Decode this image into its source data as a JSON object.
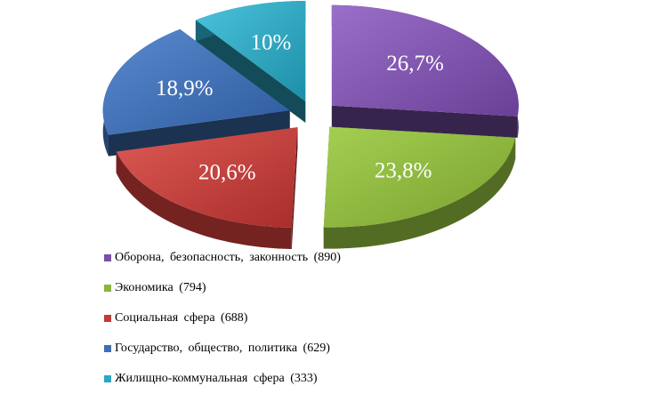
{
  "chart_data": {
    "type": "pie",
    "title": "",
    "slices": [
      {
        "label": "Оборона, безопасность, законность",
        "count": 890,
        "value": 26.7,
        "value_label": "26,7%",
        "color": "#7b4fa8",
        "legend": "Оборона,  безопасность,  законность (890)"
      },
      {
        "label": "Экономика",
        "count": 794,
        "value": 23.8,
        "value_label": "23,8%",
        "color": "#8bb43a",
        "legend": "Экономика (794)"
      },
      {
        "label": "Социальная сфера",
        "count": 688,
        "value": 20.6,
        "value_label": "20,6%",
        "color": "#c23b37",
        "legend": "Социальная  сфера (688)"
      },
      {
        "label": "Государство, общество, политика",
        "count": 629,
        "value": 18.9,
        "value_label": "18,9%",
        "color": "#3d6fb5",
        "legend": "Государство,  общество,  политика (629)"
      },
      {
        "label": "Жилищно-коммунальная сфера",
        "count": 333,
        "value": 10.0,
        "value_label": "10%",
        "color": "#2aa8c4",
        "legend": "Жилищно-коммунальная  сфера (333)"
      }
    ],
    "exploded": true,
    "three_d": true,
    "legend_position": "bottom-left"
  }
}
